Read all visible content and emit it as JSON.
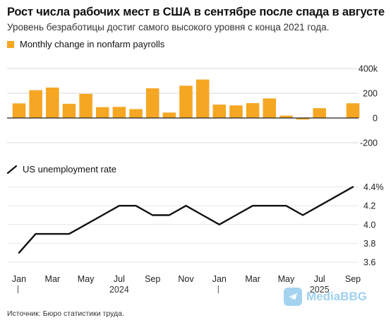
{
  "title": "Рост числа рабочих мест в США в сентябре после спада в августе",
  "subtitle": "Уровень безработицы достиг самого высокого уровня с конца 2021 года.",
  "source": "Источник: Бюро статистики труда.",
  "watermark": "MediaBBG",
  "colors": {
    "bar": "#f5a623",
    "line": "#111111",
    "grid": "#d9d9d9",
    "axis": "#222222"
  },
  "chart_data": [
    {
      "type": "bar",
      "legend": "Monthly change in nonfarm payrolls",
      "yticks": [
        "400k",
        "200",
        "0",
        "-200"
      ],
      "ylim": [
        -200,
        400
      ],
      "values": [
        118,
        225,
        246,
        115,
        195,
        88,
        90,
        72,
        240,
        44,
        261,
        311,
        108,
        102,
        120,
        158,
        19,
        -13,
        79,
        0,
        119
      ]
    },
    {
      "type": "line",
      "legend": "US unemployment rate",
      "yticks": [
        "4.4%",
        "4.2",
        "4.0",
        "3.8",
        "3.6"
      ],
      "ylim": [
        3.6,
        4.4
      ],
      "values": [
        3.7,
        3.9,
        3.9,
        3.9,
        4.0,
        4.1,
        4.2,
        4.2,
        4.1,
        4.1,
        4.2,
        4.1,
        4.0,
        4.1,
        4.2,
        4.2,
        4.2,
        4.1,
        4.2,
        4.3,
        4.4
      ],
      "xticks": [
        "Jan",
        "Mar",
        "May",
        "Jul",
        "Sep",
        "Nov",
        "Jan",
        "Mar",
        "May",
        "Jul",
        "Sep"
      ],
      "years": [
        "2024",
        "2025"
      ]
    }
  ]
}
